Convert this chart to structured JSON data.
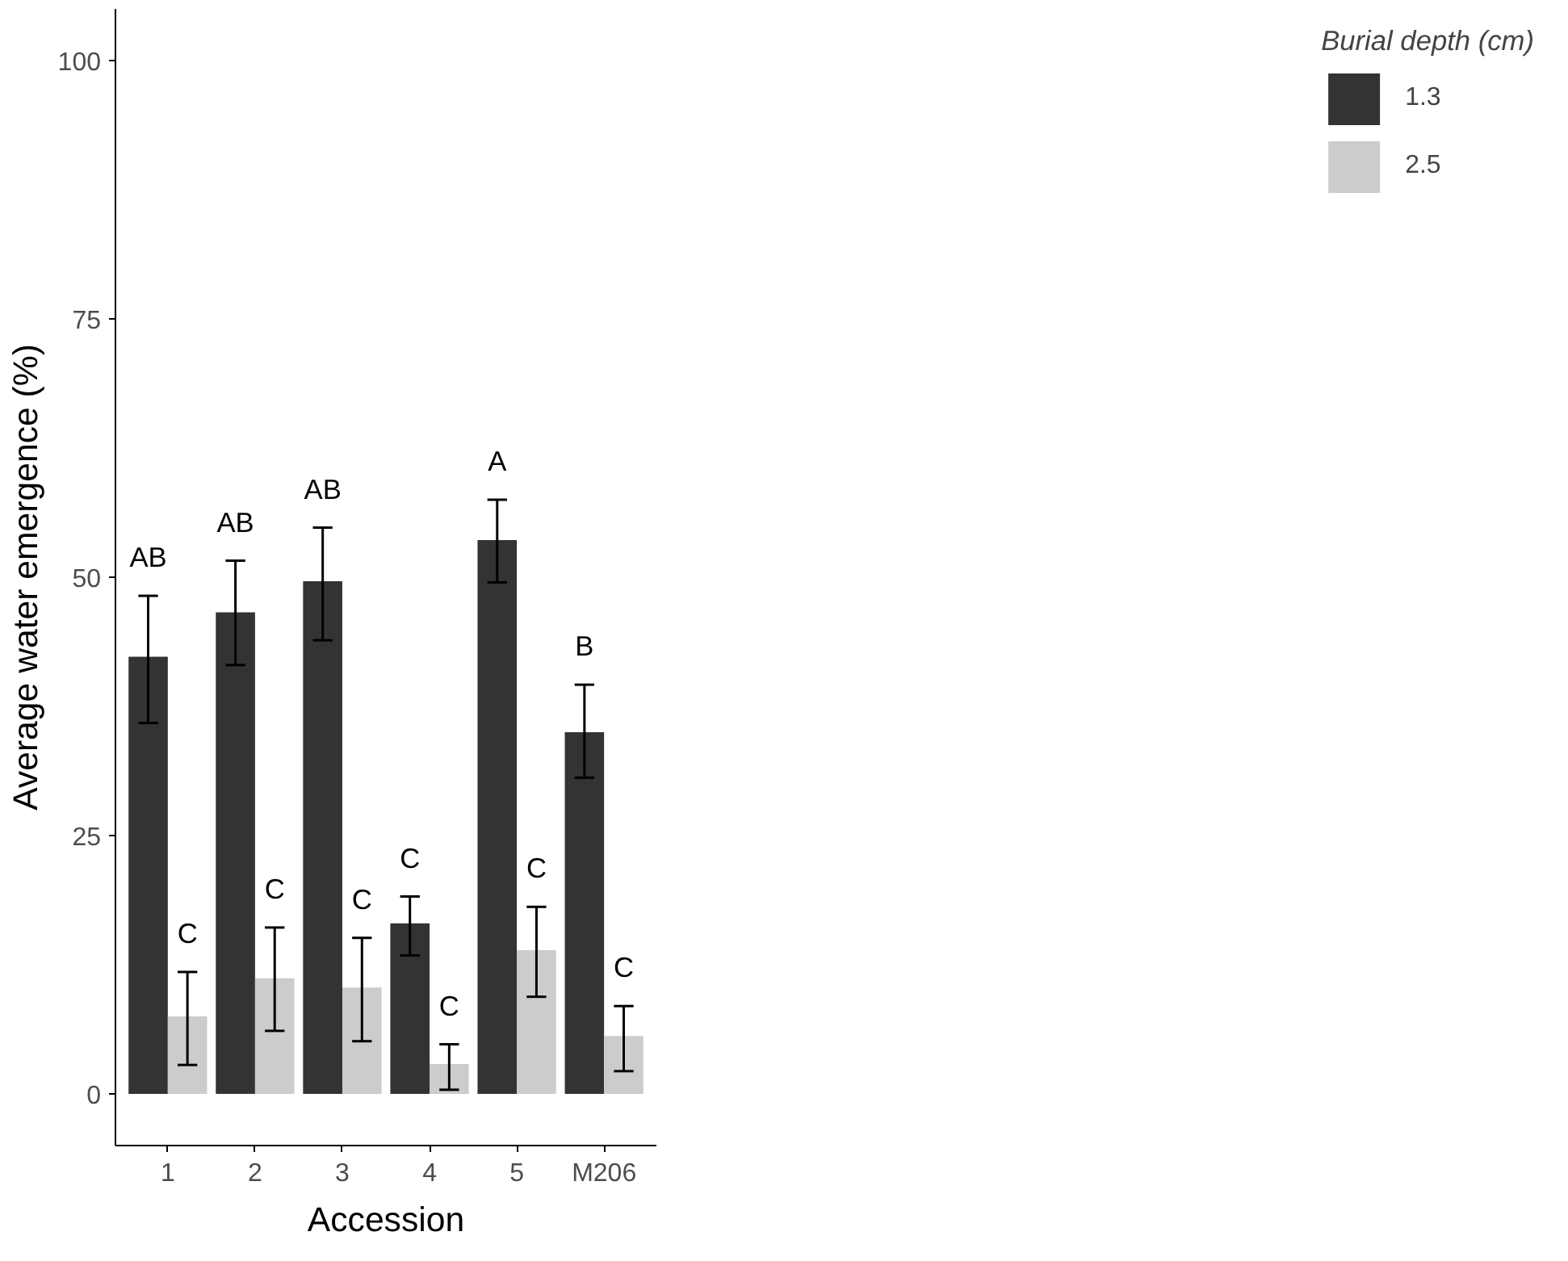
{
  "chart_data": {
    "type": "bar",
    "xlabel": "Accession",
    "ylabel": "Average water emergence (%)",
    "legend_title": "Burial depth (cm)",
    "categories": [
      "1",
      "2",
      "3",
      "4",
      "5",
      "M206"
    ],
    "series": [
      {
        "name": "1.3",
        "color": "#333333",
        "values": [
          42.3,
          46.6,
          49.6,
          16.5,
          53.6,
          35.0
        ],
        "errors": [
          [
            35.9,
            48.2
          ],
          [
            41.5,
            51.6
          ],
          [
            43.9,
            54.8
          ],
          [
            13.4,
            19.1
          ],
          [
            49.5,
            57.5
          ],
          [
            30.6,
            39.6
          ]
        ],
        "value_labels": [
          "AB",
          "AB",
          "AB",
          "C",
          "A",
          "B"
        ]
      },
      {
        "name": "2.5",
        "color": "#cccccc",
        "values": [
          7.5,
          11.2,
          10.3,
          2.9,
          13.9,
          5.6
        ],
        "errors": [
          [
            2.8,
            11.8
          ],
          [
            6.1,
            16.1
          ],
          [
            5.1,
            15.1
          ],
          [
            0.4,
            4.8
          ],
          [
            9.4,
            18.1
          ],
          [
            2.2,
            8.5
          ]
        ],
        "value_labels": [
          "C",
          "C",
          "C",
          "C",
          "C",
          "C"
        ]
      }
    ],
    "ylim": [
      -5,
      105
    ],
    "yticks": [
      0,
      25,
      50,
      75,
      100
    ],
    "grid": false,
    "legend": "right"
  }
}
